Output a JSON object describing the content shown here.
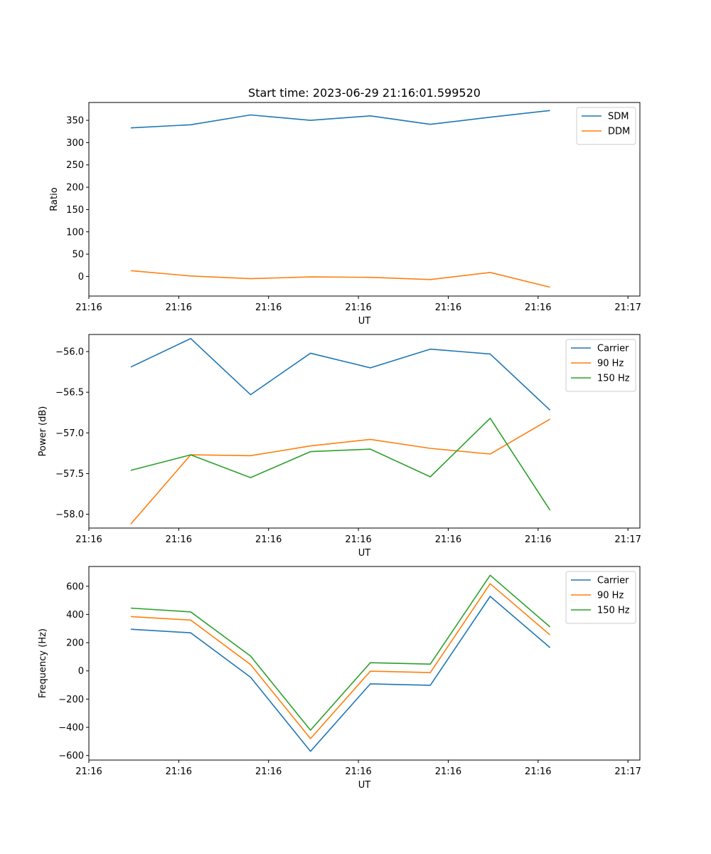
{
  "figure_title": "Start time: 2023-06-29 21:16:01.599520",
  "colors": {
    "blue": "#1f77b4",
    "orange": "#ff7f0e",
    "green": "#2ca02c"
  },
  "x_tick_labels": [
    "21:16",
    "21:16",
    "21:16",
    "21:16",
    "21:16",
    "21:16",
    "21:17"
  ],
  "chart_data": [
    {
      "type": "line",
      "title": "Start time: 2023-06-29 21:16:01.599520",
      "xlabel": "UT",
      "ylabel": "Ratio",
      "x": [
        1,
        2,
        3,
        4,
        5,
        6,
        7,
        8
      ],
      "ylim": [
        -44,
        390
      ],
      "yticks": [
        0,
        50,
        100,
        150,
        200,
        250,
        300,
        350
      ],
      "ytick_labels": [
        "0",
        "50",
        "100",
        "150",
        "200",
        "250",
        "300",
        "350"
      ],
      "legend_position": "upper right",
      "series": [
        {
          "name": "SDM",
          "color": "#1f77b4",
          "values": [
            333,
            340,
            362,
            350,
            360,
            341,
            357,
            372
          ]
        },
        {
          "name": "DDM",
          "color": "#ff7f0e",
          "values": [
            13,
            1,
            -5,
            -1,
            -2,
            -7,
            9,
            -24
          ]
        }
      ]
    },
    {
      "type": "line",
      "xlabel": "UT",
      "ylabel": "Power (dB)",
      "x": [
        1,
        2,
        3,
        4,
        5,
        6,
        7,
        8
      ],
      "ylim": [
        -58.17,
        -55.79
      ],
      "yticks": [
        -58.0,
        -57.5,
        -57.0,
        -56.5,
        -56.0
      ],
      "ytick_labels": [
        "−58.0",
        "−57.5",
        "−57.0",
        "−56.5",
        "−56.0"
      ],
      "legend_position": "upper right",
      "series": [
        {
          "name": "Carrier",
          "color": "#1f77b4",
          "values": [
            -56.19,
            -55.84,
            -56.53,
            -56.02,
            -56.2,
            -55.97,
            -56.03,
            -56.72
          ]
        },
        {
          "name": "90 Hz",
          "color": "#ff7f0e",
          "values": [
            -58.12,
            -57.27,
            -57.28,
            -57.16,
            -57.08,
            -57.19,
            -57.26,
            -56.83
          ]
        },
        {
          "name": "150 Hz",
          "color": "#2ca02c",
          "values": [
            -57.46,
            -57.27,
            -57.55,
            -57.23,
            -57.2,
            -57.54,
            -56.82,
            -57.95
          ]
        }
      ]
    },
    {
      "type": "line",
      "xlabel": "UT",
      "ylabel": "Frequency (Hz)",
      "x": [
        1,
        2,
        3,
        4,
        5,
        6,
        7,
        8
      ],
      "ylim": [
        -632,
        740
      ],
      "yticks": [
        -600,
        -400,
        -200,
        0,
        200,
        400,
        600
      ],
      "ytick_labels": [
        "−600",
        "−400",
        "−200",
        "0",
        "200",
        "400",
        "600"
      ],
      "legend_position": "upper right",
      "series": [
        {
          "name": "Carrier",
          "color": "#1f77b4",
          "values": [
            295,
            270,
            -45,
            -570,
            -92,
            -102,
            528,
            165
          ]
        },
        {
          "name": "90 Hz",
          "color": "#ff7f0e",
          "values": [
            385,
            360,
            45,
            -480,
            -2,
            -12,
            618,
            255
          ]
        },
        {
          "name": "150 Hz",
          "color": "#2ca02c",
          "values": [
            445,
            418,
            105,
            -420,
            58,
            48,
            678,
            312
          ]
        }
      ]
    }
  ]
}
